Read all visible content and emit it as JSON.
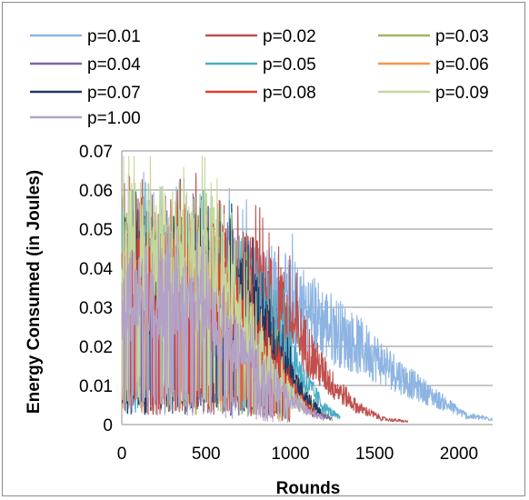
{
  "chart_data": {
    "type": "line",
    "title": "",
    "xlabel": "Rounds",
    "ylabel": "Energy Consumed (in Joules)",
    "xlim": [
      0,
      2200
    ],
    "ylim": [
      0,
      0.07
    ],
    "x_ticks": [
      "0",
      "500",
      "1000",
      "1500",
      "2000"
    ],
    "y_ticks": [
      "0",
      "0.01",
      "0.02",
      "0.03",
      "0.04",
      "0.05",
      "0.06",
      "0.07"
    ],
    "grid": "horizontal",
    "legend_position": "top",
    "series": [
      {
        "name": "p=0.01",
        "color": "#8db4e2",
        "envelope": [
          [
            0,
            0.055
          ],
          [
            400,
            0.054
          ],
          [
            700,
            0.05
          ],
          [
            900,
            0.046
          ],
          [
            1100,
            0.04
          ],
          [
            1300,
            0.032
          ],
          [
            1500,
            0.024
          ],
          [
            1700,
            0.015
          ],
          [
            1900,
            0.008
          ],
          [
            2050,
            0.003
          ],
          [
            2200,
            0.002
          ]
        ]
      },
      {
        "name": "p=0.02",
        "color": "#c0504d",
        "envelope": [
          [
            0,
            0.055
          ],
          [
            400,
            0.054
          ],
          [
            650,
            0.052
          ],
          [
            800,
            0.048
          ],
          [
            950,
            0.04
          ],
          [
            1050,
            0.032
          ],
          [
            1150,
            0.022
          ],
          [
            1250,
            0.014
          ],
          [
            1400,
            0.006
          ],
          [
            1550,
            0.002
          ],
          [
            1700,
            0.001
          ]
        ]
      },
      {
        "name": "p=0.03",
        "color": "#9bbb59",
        "envelope": [
          [
            0,
            0.055
          ],
          [
            400,
            0.053
          ],
          [
            600,
            0.048
          ],
          [
            750,
            0.04
          ],
          [
            850,
            0.032
          ],
          [
            950,
            0.022
          ],
          [
            1050,
            0.012
          ],
          [
            1150,
            0.005
          ],
          [
            1250,
            0.002
          ]
        ]
      },
      {
        "name": "p=0.04",
        "color": "#8064a2",
        "envelope": [
          [
            0,
            0.052
          ],
          [
            400,
            0.05
          ],
          [
            600,
            0.045
          ],
          [
            750,
            0.036
          ],
          [
            850,
            0.028
          ],
          [
            950,
            0.018
          ],
          [
            1050,
            0.01
          ],
          [
            1150,
            0.004
          ],
          [
            1250,
            0.002
          ]
        ]
      },
      {
        "name": "p=0.05",
        "color": "#4bacc6",
        "envelope": [
          [
            0,
            0.052
          ],
          [
            400,
            0.051
          ],
          [
            650,
            0.05
          ],
          [
            800,
            0.046
          ],
          [
            900,
            0.036
          ],
          [
            1000,
            0.025
          ],
          [
            1100,
            0.014
          ],
          [
            1200,
            0.006
          ],
          [
            1300,
            0.002
          ]
        ]
      },
      {
        "name": "p=0.06",
        "color": "#f79646",
        "envelope": [
          [
            0,
            0.05
          ],
          [
            400,
            0.049
          ],
          [
            600,
            0.044
          ],
          [
            750,
            0.036
          ],
          [
            850,
            0.028
          ],
          [
            950,
            0.018
          ],
          [
            1050,
            0.01
          ],
          [
            1150,
            0.004
          ]
        ]
      },
      {
        "name": "p=0.07",
        "color": "#1f3864",
        "envelope": [
          [
            0,
            0.05
          ],
          [
            400,
            0.049
          ],
          [
            650,
            0.048
          ],
          [
            780,
            0.04
          ],
          [
            880,
            0.03
          ],
          [
            980,
            0.019
          ],
          [
            1080,
            0.01
          ],
          [
            1180,
            0.004
          ]
        ]
      },
      {
        "name": "p=0.08",
        "color": "#e03c31",
        "envelope": [
          [
            0,
            0.05
          ],
          [
            400,
            0.049
          ],
          [
            600,
            0.044
          ],
          [
            750,
            0.036
          ],
          [
            850,
            0.027
          ],
          [
            950,
            0.017
          ],
          [
            1050,
            0.009
          ],
          [
            1150,
            0.003
          ]
        ]
      },
      {
        "name": "p=0.09",
        "color": "#c4d79b",
        "envelope": [
          [
            0,
            0.062
          ],
          [
            300,
            0.062
          ],
          [
            500,
            0.058
          ],
          [
            650,
            0.046
          ],
          [
            800,
            0.03
          ],
          [
            900,
            0.02
          ],
          [
            1000,
            0.011
          ],
          [
            1100,
            0.005
          ]
        ]
      },
      {
        "name": "p=1.00",
        "color": "#b3a2c7",
        "envelope": [
          [
            0,
            0.047
          ],
          [
            300,
            0.046
          ],
          [
            500,
            0.04
          ],
          [
            650,
            0.03
          ],
          [
            800,
            0.02
          ],
          [
            950,
            0.011
          ],
          [
            1100,
            0.005
          ],
          [
            1200,
            0.002
          ]
        ]
      }
    ]
  }
}
